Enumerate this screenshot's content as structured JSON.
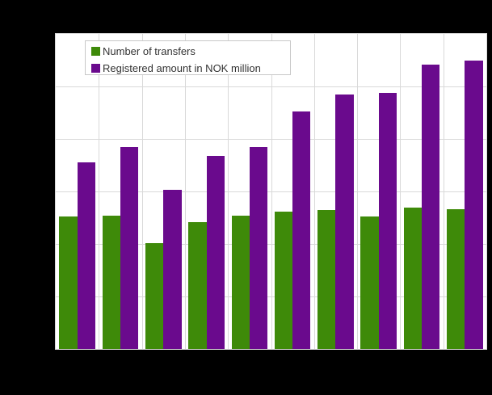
{
  "window": {
    "background": "#000000"
  },
  "chart_data": {
    "type": "bar",
    "title": "",
    "categories": [
      "",
      "",
      "",
      "",
      "",
      "",
      "",
      "",
      "",
      ""
    ],
    "series": [
      {
        "name": "Number of transfers",
        "color": "#3e8a09",
        "values_gridline_units": [
          2.52,
          2.54,
          2.02,
          2.42,
          2.54,
          2.62,
          2.65,
          2.52,
          2.7,
          2.66
        ]
      },
      {
        "name": "Registered amount in NOK million",
        "color": "#6a0a8d",
        "values_gridline_units": [
          3.55,
          3.84,
          3.03,
          3.67,
          3.85,
          4.53,
          4.84,
          4.88,
          5.42,
          5.49
        ]
      }
    ],
    "y_axis": {
      "min": 0,
      "max_gridline_units": 6,
      "gridline_interval": 1,
      "tick_labels_visible": false
    },
    "x_axis": {
      "tick_labels_visible": false
    },
    "grid": {
      "horizontal": true,
      "vertical": true,
      "color": "#d9d9d9"
    },
    "plot_background": "#ffffff",
    "plot_border_color": "#d9d9d9",
    "legend": {
      "position": "top-left",
      "background": "#ffffff",
      "border_color": "#c8c8c8",
      "text_color": "#333333"
    }
  }
}
